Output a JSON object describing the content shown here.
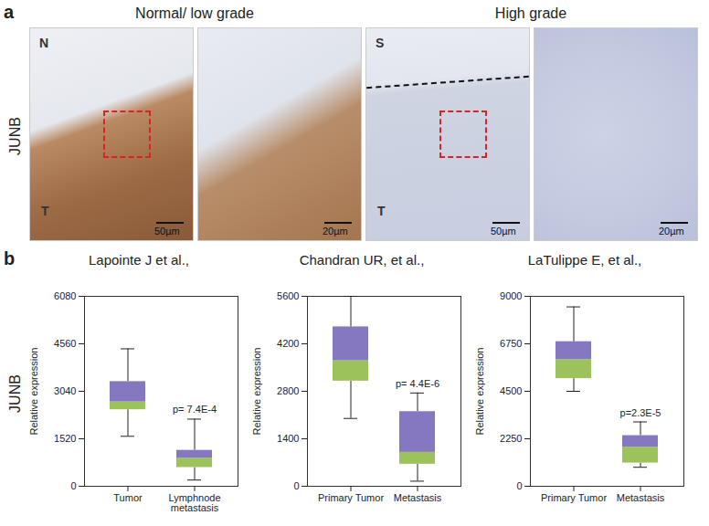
{
  "panel_a": {
    "label": "a",
    "row_label": "JUNB",
    "groups": [
      {
        "title": "Normal/ low grade",
        "images": [
          {
            "labels": [
              "N",
              "T"
            ],
            "scale_bar": "50µm"
          },
          {
            "labels": [],
            "scale_bar": "20µm"
          }
        ]
      },
      {
        "title": "High grade",
        "images": [
          {
            "labels": [
              "S",
              "T"
            ],
            "scale_bar": "50µm"
          },
          {
            "labels": [],
            "scale_bar": "20µm"
          }
        ]
      }
    ]
  },
  "panel_b": {
    "label": "b",
    "row_label": "JUNB"
  },
  "chart_data": [
    {
      "type": "box",
      "title": "Lapointe J et al.,",
      "ylabel": "Relative expression",
      "categories": [
        "Tumor",
        "Lymphnode metastasis"
      ],
      "boxes": [
        {
          "whislo": 1600,
          "q1": 2450,
          "median": 2700,
          "q3": 3350,
          "whishi": 4400
        },
        {
          "whislo": 200,
          "q1": 600,
          "median": 900,
          "q3": 1150,
          "whishi": 2150
        }
      ],
      "annotations": [
        {
          "category": "Lymphnode metastasis",
          "text": "p= 7.4E-4"
        }
      ],
      "colors": [
        "#9bc25b",
        "#8577c0"
      ],
      "ylim": [
        0,
        6080
      ],
      "yticks": [
        0,
        1520,
        3040,
        4560,
        6080
      ]
    },
    {
      "type": "box",
      "title": "Chandran UR, et al.,",
      "ylabel": "Relative expression",
      "categories": [
        "Primary Tumor",
        "Metastasis"
      ],
      "boxes": [
        {
          "whislo": 2000,
          "q1": 3100,
          "median": 3700,
          "q3": 4700,
          "whishi": 5600
        },
        {
          "whislo": 150,
          "q1": 650,
          "median": 1000,
          "q3": 2200,
          "whishi": 2750
        }
      ],
      "annotations": [
        {
          "category": "Metastasis",
          "text": "p= 4.4E-6"
        }
      ],
      "colors": [
        "#9bc25b",
        "#8577c0"
      ],
      "ylim": [
        0,
        5600
      ],
      "yticks": [
        0,
        1400,
        2800,
        4200,
        5600
      ]
    },
    {
      "type": "box",
      "title": "LaTulippe E, et al.,",
      "ylabel": "Relative expression",
      "categories": [
        "Primary Tumor",
        "Metastasis"
      ],
      "boxes": [
        {
          "whislo": 4500,
          "q1": 5100,
          "median": 6000,
          "q3": 6850,
          "whishi": 8500
        },
        {
          "whislo": 900,
          "q1": 1100,
          "median": 1850,
          "q3": 2400,
          "whishi": 3050
        }
      ],
      "annotations": [
        {
          "category": "Metastasis",
          "text": "p=2.3E-5"
        }
      ],
      "colors": [
        "#9bc25b",
        "#8577c0"
      ],
      "ylim": [
        0,
        9000
      ],
      "yticks": [
        0,
        2250,
        4500,
        6750,
        9000
      ]
    }
  ]
}
